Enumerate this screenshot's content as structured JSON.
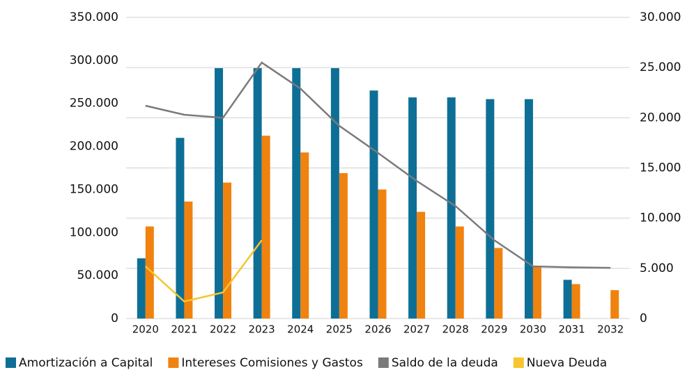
{
  "chart_data": {
    "type": "bar",
    "categories": [
      "2020",
      "2021",
      "2022",
      "2023",
      "2024",
      "2025",
      "2026",
      "2027",
      "2028",
      "2029",
      "2030",
      "2031",
      "2032"
    ],
    "series": [
      {
        "name": "Amortización a Capital",
        "color": "#0e6f96",
        "type": "bar",
        "values": [
          70000,
          210000,
          291000,
          291000,
          291000,
          291000,
          265000,
          257000,
          257000,
          255000,
          255000,
          45000,
          null
        ]
      },
      {
        "name": "Intereses Comisiones y Gastos",
        "color": "#f0820f",
        "type": "bar",
        "values": [
          107000,
          136000,
          158000,
          212500,
          193000,
          169000,
          150000,
          124000,
          107000,
          82000,
          61000,
          40000,
          33000
        ]
      },
      {
        "name": "Saldo de la deuda",
        "color": "#7a7a7a",
        "type": "line",
        "axis": "y2",
        "values": [
          21200,
          20300,
          20000,
          25500,
          22900,
          19200,
          16500,
          13700,
          11200,
          7800,
          5200,
          5100,
          5050
        ]
      },
      {
        "name": "Nueva Deuda",
        "color": "#f7c52e",
        "type": "line",
        "axis": "y2",
        "values": [
          5200,
          1700,
          2600,
          7800,
          null,
          null,
          null,
          null,
          null,
          null,
          null,
          null,
          null
        ]
      }
    ],
    "ylim": [
      0,
      350000
    ],
    "yticks": [
      0,
      {
        "value": 50000,
        "label": "50.000"
      },
      {
        "value": 100000,
        "label": "100.000"
      },
      {
        "value": 150000,
        "label": "150.000"
      },
      {
        "value": 200000,
        "label": "200.000"
      },
      {
        "value": 250000,
        "label": "250.000"
      },
      {
        "value": 300000,
        "label": "300.000"
      },
      {
        "value": 350000,
        "label": "350.000"
      }
    ],
    "y2lim": [
      0,
      30000
    ],
    "y2ticks": [
      0,
      {
        "value": 5000,
        "label": "5.000"
      },
      {
        "value": 10000,
        "label": "10.000"
      },
      {
        "value": 15000,
        "label": "15.000"
      },
      {
        "value": 20000,
        "label": "20.000"
      },
      {
        "value": 25000,
        "label": "25.000"
      },
      {
        "value": 30000,
        "label": "30.000"
      }
    ],
    "grid": true,
    "legend": "bottom"
  }
}
